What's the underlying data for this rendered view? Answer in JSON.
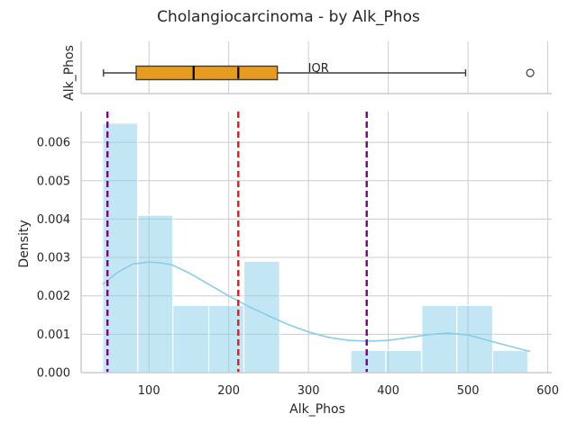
{
  "chart_data": {
    "title": "Cholangiocarcinoma - by Alk_Phos",
    "colors": {
      "hist_fill": "#87ceeb",
      "kde_line": "#87ceeb",
      "box_fill": "#e69c1f",
      "mean_line": "#e41a1c",
      "percentile_line": "#800080",
      "grid": "#cccccc"
    },
    "boxplot": {
      "type": "box",
      "ylabel": "Alk_Phos",
      "whisker_low": 43,
      "q1": 84,
      "median": 156,
      "mean": 212,
      "q3": 261,
      "whisker_high": 497,
      "outliers": [
        578
      ],
      "annotation": "IQR"
    },
    "histogram": {
      "type": "bar",
      "xlabel": "Alk_Phos",
      "ylabel": "Density",
      "xlim": [
        15,
        605
      ],
      "ylim": [
        0,
        0.0068
      ],
      "xticks": [
        100,
        200,
        300,
        400,
        500,
        600
      ],
      "yticks": [
        0.0,
        0.001,
        0.002,
        0.003,
        0.004,
        0.005,
        0.006
      ],
      "ytick_labels": [
        "0.000",
        "0.001",
        "0.002",
        "0.003",
        "0.004",
        "0.005",
        "0.006"
      ],
      "bins": [
        {
          "x0": 42,
          "x1": 86,
          "density": 0.0065
        },
        {
          "x0": 86,
          "x1": 130,
          "density": 0.0041
        },
        {
          "x0": 130,
          "x1": 175,
          "density": 0.00175
        },
        {
          "x0": 175,
          "x1": 219,
          "density": 0.00175
        },
        {
          "x0": 219,
          "x1": 264,
          "density": 0.0029
        },
        {
          "x0": 264,
          "x1": 308,
          "density": 0
        },
        {
          "x0": 308,
          "x1": 353,
          "density": 0
        },
        {
          "x0": 353,
          "x1": 397,
          "density": 0.00058
        },
        {
          "x0": 397,
          "x1": 442,
          "density": 0.00058
        },
        {
          "x0": 442,
          "x1": 486,
          "density": 0.00175
        },
        {
          "x0": 486,
          "x1": 531,
          "density": 0.00175
        },
        {
          "x0": 531,
          "x1": 575,
          "density": 0.00058
        }
      ],
      "kde": {
        "x": [
          42,
          60,
          80,
          100,
          115,
          130,
          150,
          175,
          200,
          225,
          250,
          275,
          300,
          325,
          350,
          375,
          400,
          425,
          450,
          475,
          500,
          525,
          550,
          578
        ],
        "y": [
          0.0023,
          0.0026,
          0.00283,
          0.00288,
          0.00286,
          0.0028,
          0.0026,
          0.0023,
          0.002,
          0.00172,
          0.00148,
          0.00125,
          0.00106,
          0.00092,
          0.00084,
          0.00082,
          0.00084,
          0.00091,
          0.00099,
          0.00103,
          0.00098,
          0.00084,
          0.0007,
          0.00055
        ]
      },
      "mean_line": 212,
      "percentile_lines": [
        48,
        373
      ]
    }
  }
}
